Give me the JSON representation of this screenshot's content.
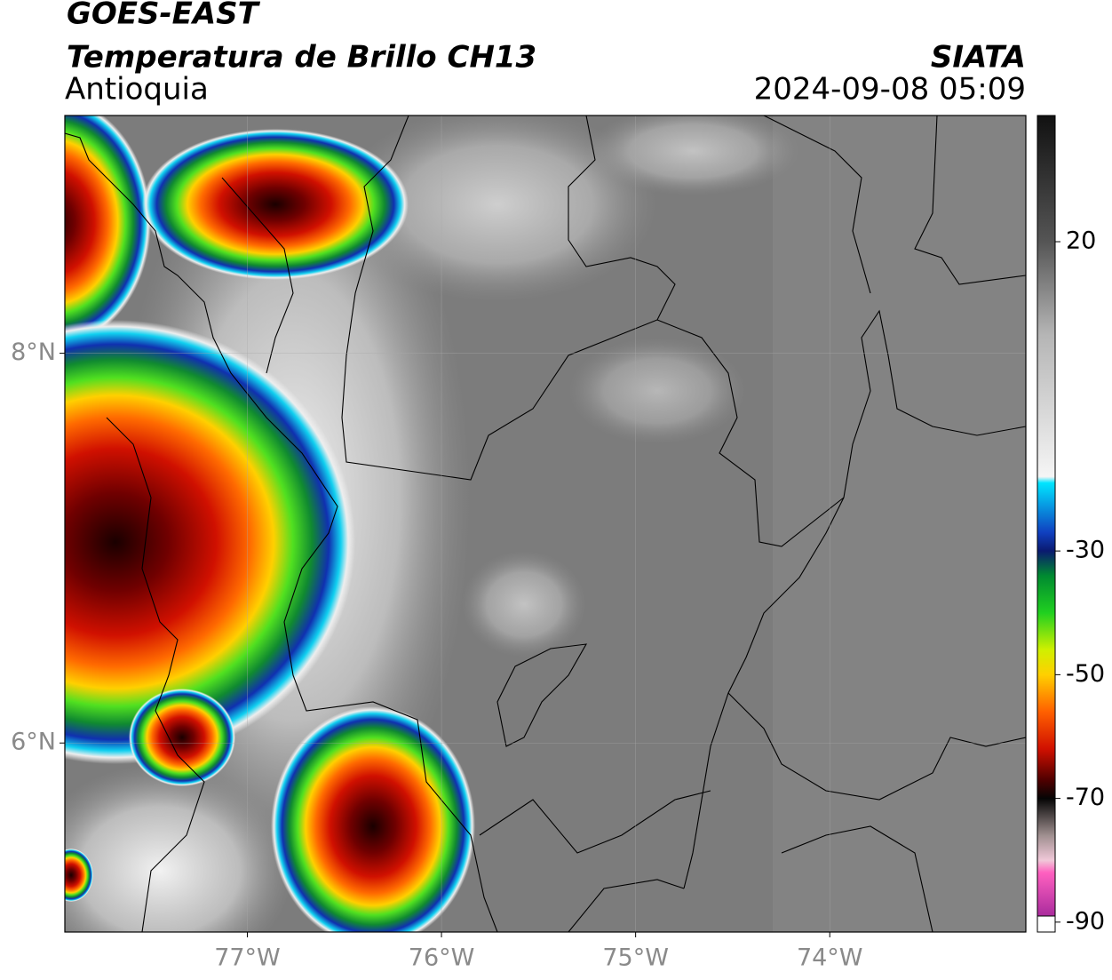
{
  "chart_data": {
    "type": "map",
    "title": "GOES-EAST",
    "subtitle": "Temperatura de Brillo CH13",
    "region": "Antioquia",
    "source": "SIATA",
    "timestamp": "2024-09-08 05:09",
    "xlim": [
      -77.94,
      -72.99
    ],
    "ylim": [
      5.03,
      9.22
    ],
    "xticks": [
      {
        "value": -77,
        "label": "77°W"
      },
      {
        "value": -76,
        "label": "76°W"
      },
      {
        "value": -75,
        "label": "75°W"
      },
      {
        "value": -74,
        "label": "74°W"
      }
    ],
    "yticks": [
      {
        "value": 6,
        "label": "6°N"
      },
      {
        "value": 8,
        "label": "8°N"
      }
    ],
    "grid": true,
    "colorbar": {
      "clim": [
        -91.6,
        40.4
      ],
      "ticks": [
        20,
        -30,
        -50,
        -70,
        -90
      ],
      "stops": [
        {
          "value": 40.4,
          "color": "#111111"
        },
        {
          "value": 20,
          "color": "#555555"
        },
        {
          "value": 5,
          "color": "#b5b5b5"
        },
        {
          "value": -18,
          "color": "#f5f5f5"
        },
        {
          "value": -19,
          "color": "#00e5ff"
        },
        {
          "value": -27,
          "color": "#1040c0"
        },
        {
          "value": -30,
          "color": "#0a1a70"
        },
        {
          "value": -34,
          "color": "#008a30"
        },
        {
          "value": -40,
          "color": "#20d020"
        },
        {
          "value": -46,
          "color": "#d0f000"
        },
        {
          "value": -50,
          "color": "#ffd000"
        },
        {
          "value": -56,
          "color": "#ff6000"
        },
        {
          "value": -62,
          "color": "#d01000"
        },
        {
          "value": -67,
          "color": "#500000"
        },
        {
          "value": -70,
          "color": "#050505"
        },
        {
          "value": -76,
          "color": "#a09090"
        },
        {
          "value": -80,
          "color": "#f0c8d8"
        },
        {
          "value": -82,
          "color": "#ff60c0"
        },
        {
          "value": -91.6,
          "color": "#8a1890"
        }
      ]
    }
  }
}
